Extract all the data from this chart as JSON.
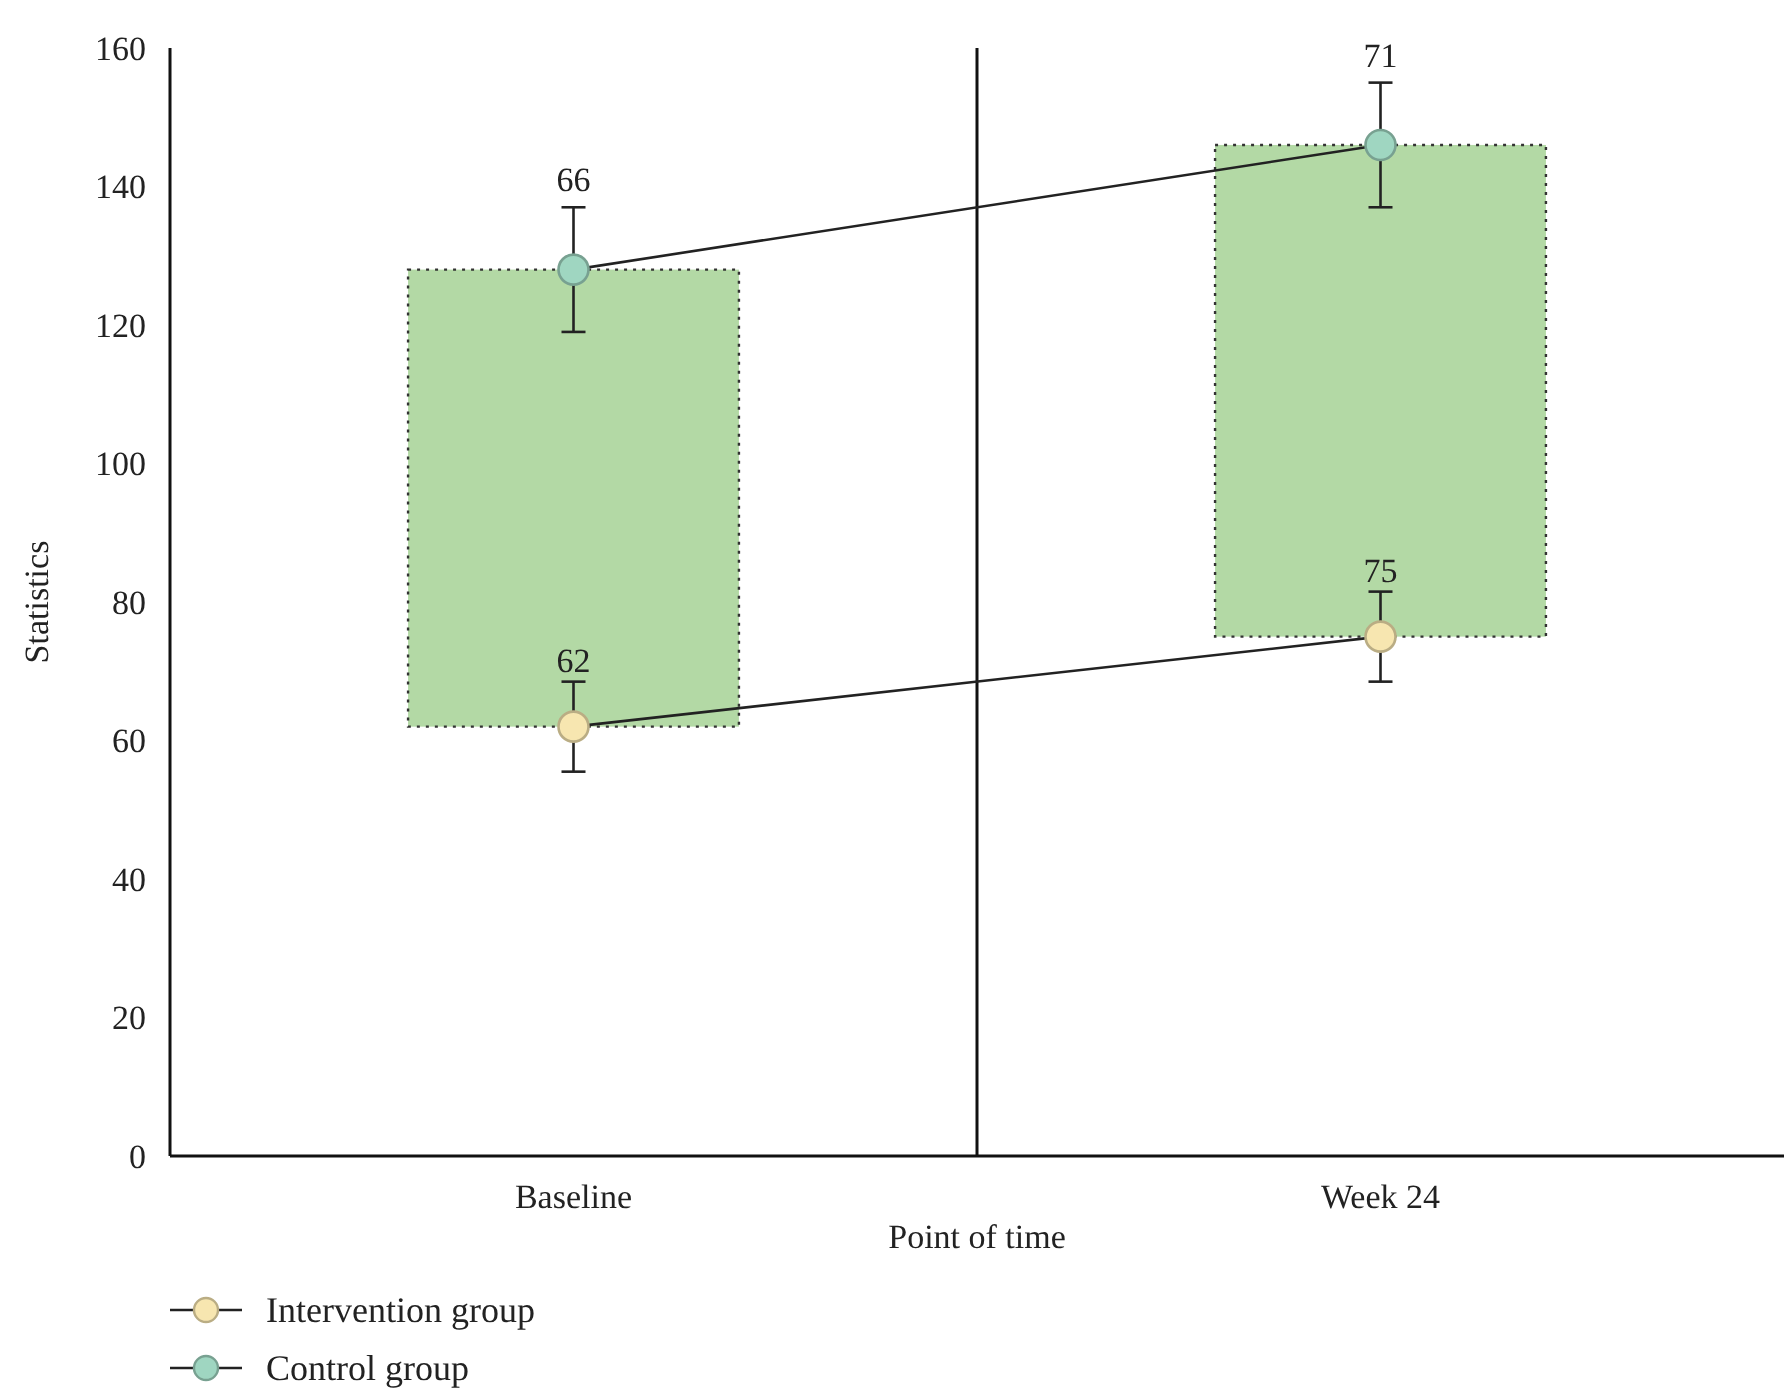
{
  "chart_data": {
    "type": "bar",
    "categories": [
      "Baseline",
      "Week 24"
    ],
    "xlabel": "Point of time",
    "ylabel": "Statistics",
    "ylim": [
      0,
      160
    ],
    "yticks": [
      0,
      20,
      40,
      60,
      80,
      100,
      120,
      140,
      160
    ],
    "grid": false,
    "legend": "bottom left",
    "marker": "circle",
    "series": [
      {
        "color": "#b3d9a5",
        "base": [
          62,
          75
        ],
        "values": [
          66,
          71
        ],
        "value_labels": [
          "66",
          "71"
        ]
      },
      {
        "type": "line",
        "name": "Intervention group",
        "color": "#f7e6b0",
        "values": [
          62,
          75
        ],
        "errors": [
          6.5,
          6.5
        ],
        "value_labels": [
          "62",
          "75"
        ]
      },
      {
        "type": "line",
        "name": "Control group",
        "color": "#9fd6c1",
        "values": [
          128,
          146
        ],
        "errors": [
          9,
          9
        ]
      }
    ]
  }
}
